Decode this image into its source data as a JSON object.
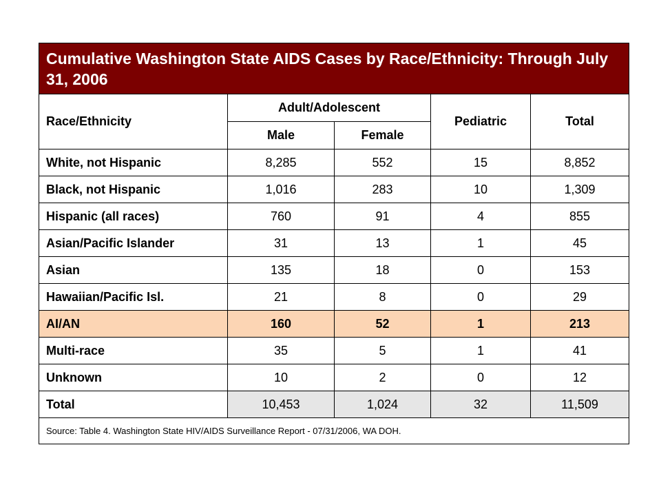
{
  "title": "Cumulative Washington State AIDS Cases by Race/Ethnicity: Through July 31, 2006",
  "headers": {
    "race_ethnicity": "Race/Ethnicity",
    "adult_adolescent": "Adult/Adolescent",
    "male": "Male",
    "female": "Female",
    "pediatric": "Pediatric",
    "total": "Total"
  },
  "rows": [
    {
      "label": "White, not Hispanic",
      "male": "8,285",
      "female": "552",
      "pediatric": "15",
      "total": "8,852"
    },
    {
      "label": "Black, not Hispanic",
      "male": "1,016",
      "female": "283",
      "pediatric": "10",
      "total": "1,309"
    },
    {
      "label": "Hispanic (all races)",
      "male": "760",
      "female": "91",
      "pediatric": "4",
      "total": "855"
    },
    {
      "label": "Asian/Pacific Islander",
      "male": "31",
      "female": "13",
      "pediatric": "1",
      "total": "45"
    },
    {
      "label": "Asian",
      "male": "135",
      "female": "18",
      "pediatric": "0",
      "total": "153"
    },
    {
      "label": "Hawaiian/Pacific Isl.",
      "male": "21",
      "female": "8",
      "pediatric": "0",
      "total": "29"
    },
    {
      "label": "AI/AN",
      "male": "160",
      "female": "52",
      "pediatric": "1",
      "total": "213"
    },
    {
      "label": "Multi-race",
      "male": "35",
      "female": "5",
      "pediatric": "1",
      "total": "41"
    },
    {
      "label": "Unknown",
      "male": "10",
      "female": "2",
      "pediatric": "0",
      "total": "12"
    }
  ],
  "total_row": {
    "label": "Total",
    "male": "10,453",
    "female": "1,024",
    "pediatric": "32",
    "total": "11,509"
  },
  "source": "Source: Table 4. Washington State HIV/AIDS Surveillance Report - 07/31/2006, WA DOH.",
  "colors": {
    "title_background": "#7b0000",
    "highlight_row": "#fcd5b4",
    "total_row": "#e6e6e6"
  }
}
